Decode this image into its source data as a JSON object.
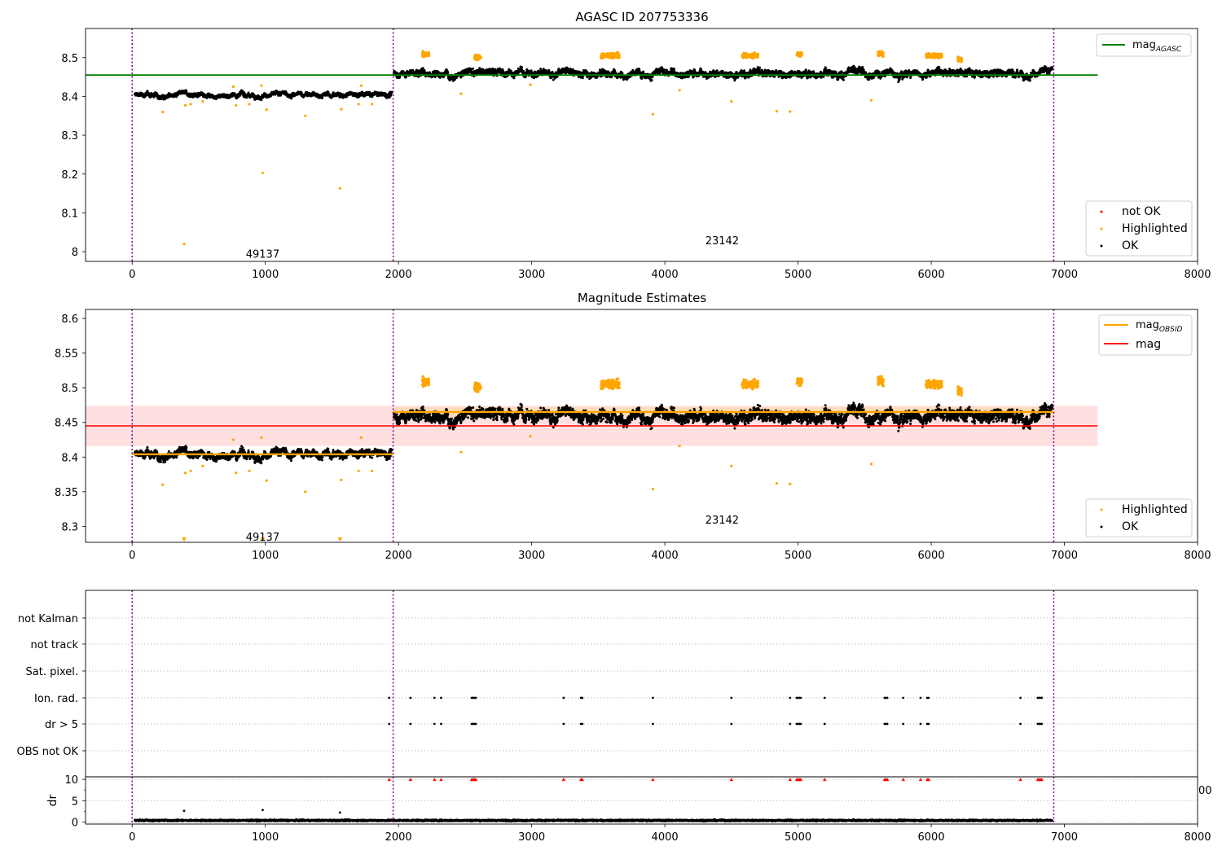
{
  "chart_data": [
    {
      "type": "scatter",
      "title": "AGASC ID 207753336",
      "xlim": [
        -350,
        8000
      ],
      "ylim": [
        7.975,
        8.575
      ],
      "xticks": [
        0,
        1000,
        2000,
        3000,
        4000,
        5000,
        6000,
        7000,
        8000
      ],
      "yticks": [
        8.0,
        8.1,
        8.2,
        8.3,
        8.4,
        8.5
      ],
      "vlines": [
        0,
        1960,
        6920
      ],
      "obsid_labels": [
        {
          "text": "49137",
          "x": 980,
          "y": 7.995
        },
        {
          "text": "23142",
          "x": 4430,
          "y": 8.03
        }
      ],
      "hlines": [
        {
          "name": "mag_AGASC",
          "label_main": "mag",
          "label_sub": "AGASC",
          "y": 8.455,
          "x": [
            -350,
            7250
          ],
          "color": "#008000"
        }
      ],
      "legend_lines_loc": "upper right",
      "legend_points_loc": "lower right",
      "legend_points": [
        {
          "name": "not OK",
          "color": "#ff0000"
        },
        {
          "name": "Highlighted",
          "color": "#ffa500"
        },
        {
          "name": "OK",
          "color": "#000000"
        }
      ],
      "segments": [
        {
          "x": [
            20,
            1950
          ],
          "level": 8.404,
          "scatter": 0.007
        },
        {
          "x": [
            1965,
            6910
          ],
          "level": 8.461,
          "scatter": 0.011
        }
      ],
      "highlight_clusters": [
        [
          2180,
          2230,
          8.508
        ],
        [
          2570,
          2620,
          8.502
        ],
        [
          3520,
          3660,
          8.505
        ],
        [
          4580,
          4700,
          8.505
        ],
        [
          4990,
          5030,
          8.508
        ],
        [
          5600,
          5640,
          8.51
        ],
        [
          5960,
          6080,
          8.505
        ],
        [
          6200,
          6230,
          8.495
        ]
      ],
      "highlighted_outliers": [
        [
          230,
          8.36
        ],
        [
          390,
          8.02
        ],
        [
          400,
          8.377
        ],
        [
          440,
          8.38
        ],
        [
          530,
          8.387
        ],
        [
          760,
          8.425
        ],
        [
          780,
          8.377
        ],
        [
          880,
          8.38
        ],
        [
          970,
          8.428
        ],
        [
          980,
          8.203
        ],
        [
          1010,
          8.366
        ],
        [
          1300,
          8.35
        ],
        [
          1560,
          8.163
        ],
        [
          1570,
          8.367
        ],
        [
          1700,
          8.38
        ],
        [
          1720,
          8.428
        ],
        [
          1800,
          8.38
        ],
        [
          2470,
          8.407
        ],
        [
          2990,
          8.43
        ],
        [
          3910,
          8.354
        ],
        [
          4110,
          8.416
        ],
        [
          4500,
          8.387
        ],
        [
          4840,
          8.362
        ],
        [
          4940,
          8.361
        ],
        [
          5550,
          8.39
        ]
      ]
    },
    {
      "type": "scatter",
      "title": "Magnitude Estimates",
      "xlim": [
        -350,
        8000
      ],
      "ylim": [
        8.277,
        8.613
      ],
      "xticks": [
        0,
        1000,
        2000,
        3000,
        4000,
        5000,
        6000,
        7000,
        8000
      ],
      "yticks": [
        8.3,
        8.35,
        8.4,
        8.45,
        8.5,
        8.55,
        8.6
      ],
      "vlines": [
        0,
        1960,
        6920
      ],
      "obsid_labels": [
        {
          "text": "49137",
          "x": 980,
          "y": 8.285
        },
        {
          "text": "23142",
          "x": 4430,
          "y": 8.31
        }
      ],
      "band": {
        "y": [
          8.416,
          8.474
        ],
        "x": [
          -350,
          7250
        ],
        "color": "#ffcccc"
      },
      "hlines": [
        {
          "name": "mag_OBSID",
          "label_main": "mag",
          "label_sub": "OBSID",
          "y": 8.404,
          "x": [
            0,
            1960
          ],
          "color": "#ffa500"
        },
        {
          "name": "mag_OBSID_2",
          "y": 8.465,
          "x": [
            1960,
            6920
          ],
          "color": "#ffa500"
        },
        {
          "name": "mag",
          "label_main": "mag",
          "label_sub": "",
          "y": 8.445,
          "x": [
            -350,
            7250
          ],
          "color": "#ff0000"
        }
      ],
      "legend_lines_loc": "upper right",
      "legend_points_loc": "lower right",
      "legend_points": [
        {
          "name": "Highlighted",
          "color": "#ffa500"
        },
        {
          "name": "OK",
          "color": "#000000"
        }
      ],
      "segments": [
        {
          "x": [
            20,
            1950
          ],
          "level": 8.404,
          "scatter": 0.007
        },
        {
          "x": [
            1965,
            6910
          ],
          "level": 8.461,
          "scatter": 0.011
        }
      ],
      "highlight_clusters": [
        [
          2180,
          2230,
          8.508
        ],
        [
          2570,
          2620,
          8.502
        ],
        [
          3520,
          3660,
          8.505
        ],
        [
          4580,
          4700,
          8.505
        ],
        [
          4990,
          5030,
          8.508
        ],
        [
          5600,
          5640,
          8.51
        ],
        [
          5960,
          6080,
          8.505
        ],
        [
          6200,
          6230,
          8.495
        ]
      ],
      "highlighted_outliers": [
        [
          230,
          8.36
        ],
        [
          400,
          8.377
        ],
        [
          440,
          8.38
        ],
        [
          530,
          8.387
        ],
        [
          760,
          8.425
        ],
        [
          780,
          8.377
        ],
        [
          880,
          8.38
        ],
        [
          970,
          8.428
        ],
        [
          1010,
          8.366
        ],
        [
          1300,
          8.35
        ],
        [
          1570,
          8.367
        ],
        [
          1700,
          8.38
        ],
        [
          1720,
          8.428
        ],
        [
          1800,
          8.38
        ],
        [
          2470,
          8.407
        ],
        [
          2990,
          8.43
        ],
        [
          3910,
          8.354
        ],
        [
          4110,
          8.416
        ],
        [
          4500,
          8.387
        ],
        [
          4840,
          8.362
        ],
        [
          4940,
          8.361
        ],
        [
          5550,
          8.39
        ]
      ],
      "clipped_markers": [
        390,
        980,
        1560
      ]
    },
    {
      "type": "scatter",
      "subtype": "flags",
      "xlim": [
        -350,
        8000
      ],
      "vlines": [
        0,
        1960,
        6920
      ],
      "flag_labels": [
        "not Kalman",
        "not track",
        "Sat. pixel.",
        "Ion. rad.",
        "dr > 5",
        "OBS not OK"
      ],
      "flag_events_x": [
        1930,
        2090,
        2270,
        2320,
        2550,
        2560,
        2570,
        2580,
        3240,
        3370,
        3380,
        3910,
        4500,
        4940,
        4990,
        5000,
        5010,
        5020,
        5200,
        5650,
        5660,
        5670,
        5790,
        5920,
        5970,
        5980,
        6670,
        6800,
        6810,
        6820,
        6830
      ],
      "flagged_rows": [
        "Ion. rad.",
        "dr > 5"
      ],
      "overlap_artifact": "00"
    },
    {
      "type": "scatter",
      "subtype": "dr",
      "ylabel": "dr",
      "xlim": [
        -350,
        8000
      ],
      "ylim": [
        -0.5,
        10.6
      ],
      "xticks": [
        0,
        1000,
        2000,
        3000,
        4000,
        5000,
        6000,
        7000,
        8000
      ],
      "yticks": [
        0,
        5,
        10
      ],
      "vlines": [
        0,
        1960,
        6920
      ],
      "baseline": {
        "x": [
          20,
          6910
        ],
        "level": 0.35
      },
      "dr_outliers": [
        [
          390,
          2.6
        ],
        [
          980,
          2.8
        ],
        [
          1560,
          2.2
        ]
      ],
      "capped_value": 10,
      "capped_color": "#ff0000"
    }
  ]
}
